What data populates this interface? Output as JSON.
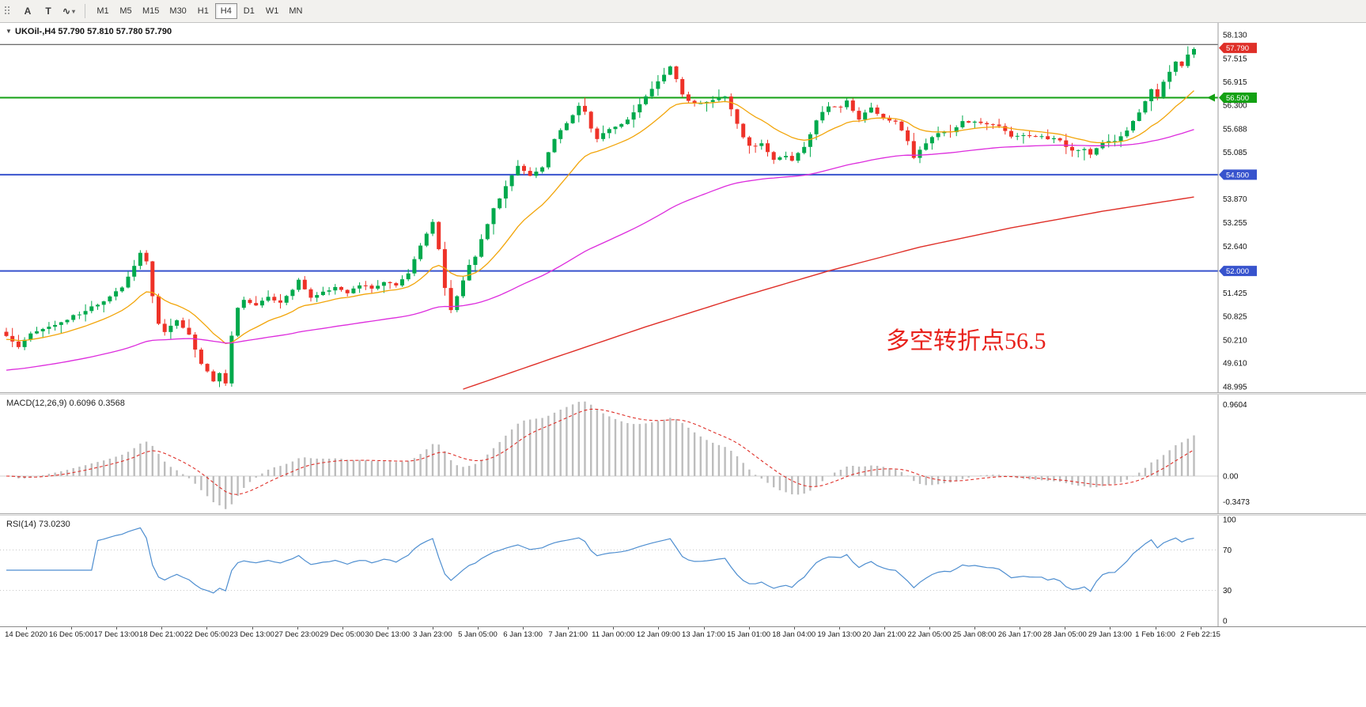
{
  "toolbar": {
    "tools": [
      {
        "label": "A"
      },
      {
        "label": "T"
      },
      {
        "icon": "∿",
        "caret": "▾"
      }
    ],
    "timeframes": [
      {
        "label": "M1"
      },
      {
        "label": "M5"
      },
      {
        "label": "M15"
      },
      {
        "label": "M30"
      },
      {
        "label": "H1"
      },
      {
        "label": "H4",
        "active": true
      },
      {
        "label": "D1"
      },
      {
        "label": "W1"
      },
      {
        "label": "MN"
      }
    ]
  },
  "main_chart": {
    "dropdown_glyph": "▼",
    "title_symbol": "UKOil-,H4",
    "title_ohlc": "57.790 57.810 57.780 57.790",
    "annotation": "多空转折点56.5",
    "annotation_color": "#e8231d",
    "axis_labels": [
      "58.130",
      "57.515",
      "56.915",
      "56.300",
      "55.688",
      "55.085",
      "53.870",
      "53.255",
      "52.640",
      "51.425",
      "50.825",
      "50.210",
      "49.610",
      "48.995"
    ],
    "price_tags": [
      {
        "value": "57.790",
        "price": 57.79,
        "color": "#df2f28"
      },
      {
        "value": "56.500",
        "price": 56.5,
        "color": "#13a113"
      },
      {
        "value": "54.500",
        "price": 54.5,
        "color": "#3753cd"
      },
      {
        "value": "52.000",
        "price": 52.0,
        "color": "#3753cd"
      }
    ]
  },
  "macd_panel": {
    "label": "MACD(12,26,9)",
    "value": "0.6096",
    "signal_value": "0.3568",
    "axis_labels": [
      "0.9604",
      "0.00",
      "-0.3473"
    ]
  },
  "rsi_panel": {
    "label": "RSI(14)",
    "value": "73.0230",
    "axis_labels": [
      "100",
      "70",
      "30",
      "0"
    ]
  },
  "time_axis": [
    "14 Dec 2020",
    "16 Dec 05:00",
    "17 Dec 13:00",
    "18 Dec 21:00",
    "22 Dec 05:00",
    "23 Dec 13:00",
    "27 Dec 23:00",
    "29 Dec 05:00",
    "30 Dec 13:00",
    "3 Jan 23:00",
    "5 Jan 05:00",
    "6 Jan 13:00",
    "7 Jan 21:00",
    "11 Jan 00:00",
    "12 Jan 09:00",
    "13 Jan 17:00",
    "15 Jan 01:00",
    "18 Jan 04:00",
    "19 Jan 13:00",
    "20 Jan 21:00",
    "22 Jan 05:00",
    "25 Jan 08:00",
    "26 Jan 17:00",
    "28 Jan 05:00",
    "29 Jan 13:00",
    "1 Feb 16:00",
    "2 Feb 22:15"
  ],
  "chart_data": {
    "type": "candlestick",
    "symbol": "UKOil",
    "timeframe": "H4",
    "current_ohlc": {
      "open": 57.79,
      "high": 57.81,
      "low": 57.78,
      "close": 57.79
    },
    "y_axis": {
      "min": 48.85,
      "max": 58.44,
      "tick_step": 0.6075
    },
    "num_candles": 196,
    "close_anchors": [
      [
        0,
        50.3
      ],
      [
        2,
        50.05
      ],
      [
        4,
        50.4
      ],
      [
        8,
        50.6
      ],
      [
        12,
        50.9
      ],
      [
        16,
        51.2
      ],
      [
        19,
        51.6
      ],
      [
        21,
        52.15
      ],
      [
        22,
        52.45
      ],
      [
        23,
        52.25
      ],
      [
        24,
        51.35
      ],
      [
        25,
        50.6
      ],
      [
        26,
        50.4
      ],
      [
        28,
        50.7
      ],
      [
        30,
        50.35
      ],
      [
        32,
        49.6
      ],
      [
        34,
        49.15
      ],
      [
        35,
        49.35
      ],
      [
        36,
        49.1
      ],
      [
        37,
        50.3
      ],
      [
        38,
        51.05
      ],
      [
        39,
        51.25
      ],
      [
        41,
        51.1
      ],
      [
        43,
        51.35
      ],
      [
        45,
        51.15
      ],
      [
        47,
        51.5
      ],
      [
        48,
        51.75
      ],
      [
        50,
        51.3
      ],
      [
        52,
        51.45
      ],
      [
        54,
        51.6
      ],
      [
        56,
        51.45
      ],
      [
        58,
        51.65
      ],
      [
        60,
        51.55
      ],
      [
        62,
        51.7
      ],
      [
        64,
        51.65
      ],
      [
        66,
        51.95
      ],
      [
        68,
        52.65
      ],
      [
        70,
        53.3
      ],
      [
        71,
        52.55
      ],
      [
        72,
        51.55
      ],
      [
        73,
        51.0
      ],
      [
        74,
        51.35
      ],
      [
        75,
        51.75
      ],
      [
        76,
        52.15
      ],
      [
        77,
        52.35
      ],
      [
        78,
        52.85
      ],
      [
        80,
        53.6
      ],
      [
        82,
        54.2
      ],
      [
        84,
        54.75
      ],
      [
        86,
        54.45
      ],
      [
        88,
        54.7
      ],
      [
        90,
        55.45
      ],
      [
        92,
        55.85
      ],
      [
        94,
        56.3
      ],
      [
        95,
        56.15
      ],
      [
        96,
        55.7
      ],
      [
        97,
        55.45
      ],
      [
        99,
        55.7
      ],
      [
        101,
        55.8
      ],
      [
        103,
        56.1
      ],
      [
        105,
        56.55
      ],
      [
        107,
        56.9
      ],
      [
        109,
        57.3
      ],
      [
        110,
        57.0
      ],
      [
        111,
        56.6
      ],
      [
        112,
        56.4
      ],
      [
        114,
        56.35
      ],
      [
        116,
        56.45
      ],
      [
        118,
        56.5
      ],
      [
        119,
        56.2
      ],
      [
        120,
        55.8
      ],
      [
        121,
        55.45
      ],
      [
        122,
        55.25
      ],
      [
        124,
        55.3
      ],
      [
        126,
        54.9
      ],
      [
        128,
        55.0
      ],
      [
        129,
        54.85
      ],
      [
        131,
        55.25
      ],
      [
        133,
        55.9
      ],
      [
        135,
        56.3
      ],
      [
        137,
        56.25
      ],
      [
        138,
        56.4
      ],
      [
        140,
        55.95
      ],
      [
        142,
        56.25
      ],
      [
        144,
        55.95
      ],
      [
        146,
        55.9
      ],
      [
        148,
        55.35
      ],
      [
        149,
        54.95
      ],
      [
        151,
        55.3
      ],
      [
        153,
        55.6
      ],
      [
        155,
        55.6
      ],
      [
        157,
        55.9
      ],
      [
        159,
        55.85
      ],
      [
        161,
        55.8
      ],
      [
        163,
        55.75
      ],
      [
        165,
        55.5
      ],
      [
        167,
        55.55
      ],
      [
        169,
        55.5
      ],
      [
        171,
        55.45
      ],
      [
        173,
        55.4
      ],
      [
        175,
        55.1
      ],
      [
        177,
        55.15
      ],
      [
        178,
        55.0
      ],
      [
        180,
        55.35
      ],
      [
        182,
        55.4
      ],
      [
        184,
        55.65
      ],
      [
        186,
        56.1
      ],
      [
        188,
        56.7
      ],
      [
        189,
        56.55
      ],
      [
        190,
        56.9
      ],
      [
        192,
        57.45
      ],
      [
        193,
        57.3
      ],
      [
        194,
        57.6
      ],
      [
        195,
        57.79
      ]
    ],
    "horizontal_lines": [
      {
        "price": 57.88,
        "color": "#3f3f3f",
        "width": 1,
        "arrow": false
      },
      {
        "price": 56.5,
        "color": "#13a113",
        "width": 2,
        "arrow": true
      },
      {
        "price": 54.5,
        "color": "#3753cd",
        "width": 2,
        "arrow": false
      },
      {
        "price": 52.0,
        "color": "#3753cd",
        "width": 2,
        "arrow": false
      }
    ],
    "moving_averages": {
      "fast": {
        "type": "ema",
        "period": 16,
        "color": "#f2a50a"
      },
      "medium": {
        "type": "ema",
        "period": 80,
        "seed": 49.4,
        "color": "#dd2cdd"
      },
      "slow": {
        "color": "#df2f28",
        "anchors": [
          [
            75,
            48.93
          ],
          [
            90,
            49.75
          ],
          [
            105,
            50.55
          ],
          [
            120,
            51.3
          ],
          [
            135,
            52.0
          ],
          [
            150,
            52.62
          ],
          [
            165,
            53.12
          ],
          [
            180,
            53.55
          ],
          [
            195,
            53.92
          ]
        ]
      }
    },
    "macd": {
      "fast": 12,
      "slow": 26,
      "signal": 9,
      "current": 0.6096,
      "current_signal": 0.3568,
      "axis_values": [
        0.9604,
        0.0,
        -0.3473
      ]
    },
    "rsi": {
      "period": 14,
      "current": 73.023,
      "levels": [
        30,
        70
      ],
      "axis_values": [
        100,
        70,
        30,
        0
      ]
    },
    "colors": {
      "up": "#00a94c",
      "down": "#ee3228",
      "macd_hist": "#bdbdbd",
      "macd_signal": "#df2f28",
      "rsi_line": "#4e8ed0"
    }
  }
}
